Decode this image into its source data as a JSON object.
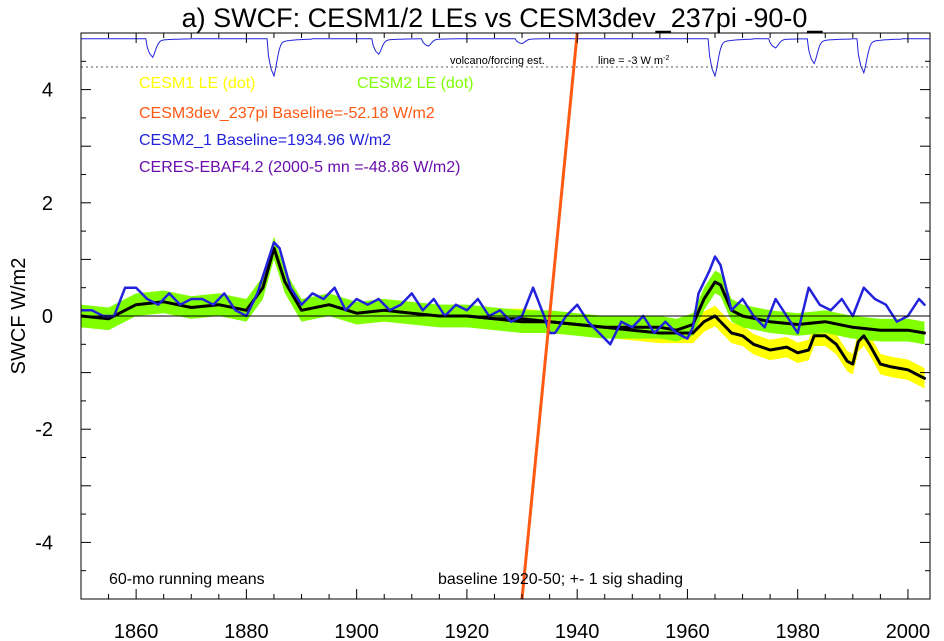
{
  "chart_data": {
    "type": "line",
    "title": "a) SWCF: CESM1/2 LEs vs CESM3dev_237pi -90-0_",
    "ylabel": "SWCF W/m2",
    "xlabel": "",
    "xlim": [
      1850,
      2004
    ],
    "ylim": [
      -5,
      5
    ],
    "xticks": [
      1860,
      1880,
      1900,
      1920,
      1940,
      1960,
      1980,
      2000
    ],
    "yticks": [
      4,
      2,
      0,
      -2,
      -4
    ],
    "ytick_labels": [
      "4",
      "2",
      "0",
      "-2",
      "-4"
    ],
    "grid": false,
    "legend_placement": "top-left",
    "legend": [
      {
        "label": "CESM1 LE (dot)",
        "color": "#ffff00"
      },
      {
        "label": "CESM2 LE (dot)",
        "color": "#7fff00"
      },
      {
        "label": "CESM3dev_237pi Baseline=-52.18 W/m2",
        "color": "#ff5a14"
      },
      {
        "label": "CESM2_1 Baseline=1934.96 W/m2",
        "color": "#2222dd"
      },
      {
        "label": "CERES-EBAF4.2 (2000-5 mn =-48.86 W/m2)",
        "color": "#6a0dad"
      }
    ],
    "annotations": {
      "forcing": "volcano/forcing est.",
      "line_note": "line = -3 W m",
      "line_note_sup": "-2",
      "bottom_left": "60-mo running means",
      "bottom_right": "baseline 1920-50; +- 1 sig shading"
    },
    "forcing_reference_y": 4.4,
    "forcing_dips": [
      {
        "year": 1862,
        "depth": 0.3
      },
      {
        "year": 1884,
        "depth": 0.6
      },
      {
        "year": 1903,
        "depth": 0.25
      },
      {
        "year": 1912,
        "depth": 0.12
      },
      {
        "year": 1929,
        "depth": 0.08
      },
      {
        "year": 1964,
        "depth": 0.6
      },
      {
        "year": 1975,
        "depth": 0.15
      },
      {
        "year": 1982,
        "depth": 0.4
      },
      {
        "year": 1991,
        "depth": 0.55
      }
    ],
    "series": [
      {
        "name": "CESM3dev_237pi",
        "color": "#ff5a14",
        "x": [
          1930,
          1940
        ],
        "y": [
          -5.0,
          5.0
        ]
      },
      {
        "name": "CESM2_1",
        "color": "#2222dd",
        "x": [
          1850,
          1852,
          1854,
          1856,
          1858,
          1860,
          1862,
          1864,
          1866,
          1868,
          1870,
          1872,
          1874,
          1876,
          1878,
          1880,
          1882,
          1884,
          1885,
          1886,
          1888,
          1890,
          1892,
          1894,
          1896,
          1898,
          1900,
          1902,
          1904,
          1906,
          1908,
          1910,
          1912,
          1914,
          1916,
          1918,
          1920,
          1922,
          1924,
          1926,
          1928,
          1930,
          1932,
          1934,
          1935,
          1936,
          1938,
          1940,
          1942,
          1944,
          1946,
          1948,
          1950,
          1952,
          1954,
          1956,
          1958,
          1960,
          1961,
          1962,
          1964,
          1965,
          1966,
          1968,
          1970,
          1972,
          1974,
          1976,
          1978,
          1980,
          1982,
          1984,
          1986,
          1988,
          1990,
          1992,
          1994,
          1996,
          1998,
          2000,
          2002,
          2003
        ],
        "y": [
          0.1,
          0.1,
          0.0,
          0.0,
          0.5,
          0.5,
          0.3,
          0.2,
          0.4,
          0.2,
          0.3,
          0.3,
          0.2,
          0.4,
          0.1,
          0.0,
          0.4,
          1.0,
          1.3,
          1.2,
          0.5,
          0.2,
          0.4,
          0.3,
          0.5,
          0.1,
          0.3,
          0.2,
          0.3,
          0.1,
          0.2,
          0.4,
          0.1,
          0.3,
          0.0,
          0.2,
          0.1,
          0.3,
          0.0,
          0.1,
          -0.1,
          0.0,
          0.5,
          0.0,
          -0.3,
          -0.3,
          0.0,
          0.2,
          -0.1,
          -0.3,
          -0.5,
          -0.1,
          -0.2,
          0.0,
          -0.3,
          -0.1,
          -0.3,
          -0.4,
          -0.2,
          0.4,
          0.8,
          1.05,
          0.9,
          0.1,
          0.3,
          0.0,
          -0.2,
          0.3,
          0.0,
          -0.3,
          0.5,
          0.2,
          0.1,
          0.3,
          0.0,
          0.5,
          0.3,
          0.2,
          -0.1,
          0.0,
          0.3,
          0.2
        ]
      },
      {
        "name": "CESM2 LE ensemble mean",
        "color": "#000000",
        "x": [
          1850,
          1855,
          1860,
          1865,
          1870,
          1875,
          1880,
          1883,
          1885,
          1887,
          1890,
          1895,
          1900,
          1905,
          1910,
          1915,
          1920,
          1925,
          1930,
          1935,
          1940,
          1945,
          1950,
          1955,
          1958,
          1961,
          1963,
          1965,
          1966,
          1968,
          1970,
          1975,
          1980,
          1985,
          1990,
          1995,
          2000,
          2003
        ],
        "y": [
          0.0,
          -0.05,
          0.2,
          0.25,
          0.15,
          0.2,
          0.1,
          0.5,
          1.2,
          0.6,
          0.1,
          0.2,
          0.05,
          0.1,
          0.05,
          0.0,
          0.0,
          -0.05,
          -0.1,
          -0.1,
          -0.15,
          -0.2,
          -0.2,
          -0.2,
          -0.25,
          -0.15,
          0.3,
          0.6,
          0.55,
          0.1,
          0.0,
          -0.1,
          -0.15,
          -0.1,
          -0.2,
          -0.25,
          -0.25,
          -0.3
        ]
      },
      {
        "name": "CESM1 LE ensemble mean",
        "color": "#000000",
        "x": [
          1920,
          1925,
          1930,
          1935,
          1940,
          1945,
          1950,
          1955,
          1958,
          1961,
          1963,
          1965,
          1968,
          1970,
          1972,
          1975,
          1978,
          1980,
          1982,
          1983,
          1985,
          1987,
          1989,
          1990,
          1991,
          1992,
          1993,
          1995,
          1997,
          2000,
          2003
        ],
        "y": [
          0.0,
          -0.05,
          -0.05,
          -0.1,
          -0.15,
          -0.2,
          -0.25,
          -0.3,
          -0.3,
          -0.3,
          -0.1,
          0.0,
          -0.3,
          -0.35,
          -0.5,
          -0.6,
          -0.55,
          -0.65,
          -0.6,
          -0.35,
          -0.35,
          -0.5,
          -0.8,
          -0.85,
          -0.45,
          -0.35,
          -0.5,
          -0.85,
          -0.9,
          -0.95,
          -1.1
        ]
      }
    ],
    "shading": [
      {
        "name": "CESM1 LE +- 1 sig",
        "color": "#ffff00",
        "follows": "CESM1 LE ensemble mean",
        "halfwidth": 0.18
      },
      {
        "name": "CESM2 LE +- 1 sig",
        "color": "#7fff00",
        "follows": "CESM2 LE ensemble mean",
        "halfwidth": 0.2
      }
    ]
  }
}
